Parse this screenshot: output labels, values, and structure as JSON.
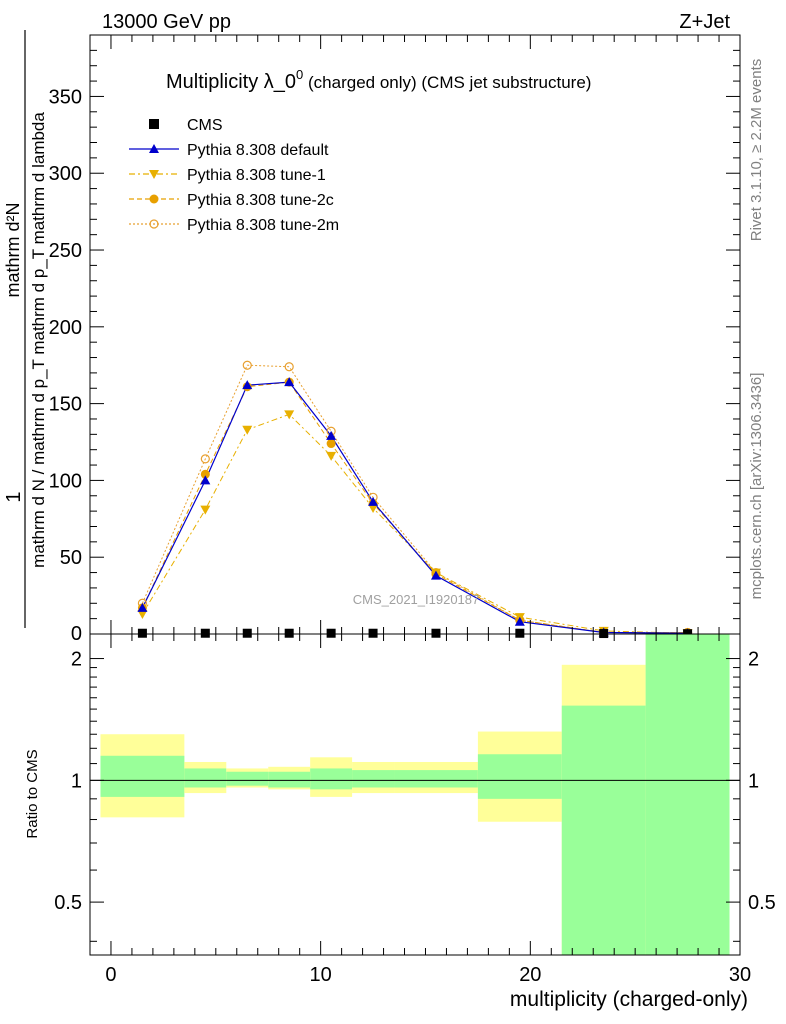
{
  "header": {
    "left": "13000 GeV pp",
    "right": "Z+Jet"
  },
  "side_labels": {
    "rivet": "Rivet 3.1.10, ≥ 2.2M events",
    "mcplots": "mcplots.cern.ch [arXiv:1306.3436]"
  },
  "watermark": "CMS_2021_I1920187",
  "chart_data": [
    {
      "type": "line",
      "panel": "main",
      "title_main": "Multiplicity λ_0",
      "title_sup": "0",
      "title_rest": " (charged only) (CMS jet substructure)",
      "ylabel_top": "mathrm d²N",
      "ylabel_bottom": "mathrm d N / mathrm d p_T mathrm d p_T mathrm d lambda",
      "ylabel_lead": "1",
      "xlim": [
        -1,
        30
      ],
      "ylim": [
        0,
        390
      ],
      "yticks": [
        50,
        100,
        150,
        200,
        250,
        300,
        350
      ],
      "ytick_labels": [
        "50",
        "100",
        "150",
        "200",
        "250",
        "300",
        "350"
      ],
      "ytick_zero": "0",
      "legend_position": "top-left",
      "series": [
        {
          "name": "CMS",
          "color": "#000000",
          "marker": "square",
          "x": [
            1.5,
            4.5,
            6.5,
            8.5,
            10.5,
            12.5,
            15.5,
            19.5,
            23.5,
            27.5
          ],
          "y": [
            0.5,
            0.5,
            0.5,
            0.5,
            0.5,
            0.5,
            0.5,
            0.5,
            0.3,
            0.2
          ]
        },
        {
          "name": "Pythia 8.308 default",
          "color": "#0000cc",
          "marker": "triangle-up",
          "dash": "",
          "x": [
            1.5,
            4.5,
            6.5,
            8.5,
            10.5,
            12.5,
            15.5,
            19.5,
            23.5,
            27.5
          ],
          "y": [
            17,
            100,
            162,
            164,
            129,
            86,
            38,
            8,
            1,
            0.5
          ]
        },
        {
          "name": "Pythia 8.308 tune-1",
          "color": "#e8b000",
          "marker": "triangle-down",
          "dash": "6,3,2,3",
          "x": [
            1.5,
            4.5,
            6.5,
            8.5,
            10.5,
            12.5,
            15.5,
            19.5,
            23.5,
            27.5
          ],
          "y": [
            13,
            81,
            133,
            143,
            116,
            82,
            40,
            11,
            2,
            0.5
          ]
        },
        {
          "name": "Pythia 8.308 tune-2c",
          "color": "#e8a000",
          "marker": "circle",
          "dash": "5,3",
          "x": [
            1.5,
            4.5,
            6.5,
            8.5,
            10.5,
            12.5,
            15.5,
            19.5,
            23.5,
            27.5
          ],
          "y": [
            17,
            104,
            161,
            164,
            124,
            85,
            39,
            9,
            1,
            1
          ]
        },
        {
          "name": "Pythia 8.308 tune-2m",
          "color": "#e8a030",
          "marker": "circle-open",
          "dash": "2,2",
          "x": [
            1.5,
            4.5,
            6.5,
            8.5,
            10.5,
            12.5,
            15.5,
            19.5,
            23.5,
            27.5
          ],
          "y": [
            20,
            114,
            175,
            174,
            132,
            89,
            40,
            9,
            1,
            1
          ]
        }
      ]
    },
    {
      "type": "area",
      "panel": "ratio",
      "ylabel": "Ratio to CMS",
      "xlabel": "multiplicity (charged-only)",
      "xlim": [
        -1,
        30
      ],
      "ylim": [
        0.37,
        2.3
      ],
      "log_y": true,
      "xticks": [
        0,
        10,
        20,
        30
      ],
      "xtick_labels": [
        "0",
        "10",
        "20",
        "30"
      ],
      "yticks": [
        0.5,
        1,
        2
      ],
      "ytick_labels": [
        "0.5",
        "1",
        "2"
      ],
      "reference_line": 1,
      "bins": [
        {
          "x0": -0.5,
          "x1": 3.5,
          "stat_lo": 0.91,
          "stat_hi": 1.15,
          "tot_lo": 0.81,
          "tot_hi": 1.3
        },
        {
          "x0": 3.5,
          "x1": 5.5,
          "stat_lo": 0.96,
          "stat_hi": 1.07,
          "tot_lo": 0.93,
          "tot_hi": 1.11
        },
        {
          "x0": 5.5,
          "x1": 7.5,
          "stat_lo": 0.97,
          "stat_hi": 1.05,
          "tot_lo": 0.96,
          "tot_hi": 1.07
        },
        {
          "x0": 7.5,
          "x1": 9.5,
          "stat_lo": 0.96,
          "stat_hi": 1.05,
          "tot_lo": 0.95,
          "tot_hi": 1.08
        },
        {
          "x0": 9.5,
          "x1": 11.5,
          "stat_lo": 0.95,
          "stat_hi": 1.07,
          "tot_lo": 0.91,
          "tot_hi": 1.14
        },
        {
          "x0": 11.5,
          "x1": 13.5,
          "stat_lo": 0.96,
          "stat_hi": 1.06,
          "tot_lo": 0.93,
          "tot_hi": 1.11
        },
        {
          "x0": 13.5,
          "x1": 17.5,
          "stat_lo": 0.96,
          "stat_hi": 1.06,
          "tot_lo": 0.93,
          "tot_hi": 1.11
        },
        {
          "x0": 17.5,
          "x1": 21.5,
          "stat_lo": 0.9,
          "stat_hi": 1.16,
          "tot_lo": 0.79,
          "tot_hi": 1.32
        },
        {
          "x0": 21.5,
          "x1": 25.5,
          "stat_lo": 0.37,
          "stat_hi": 1.53,
          "tot_lo": 0.37,
          "tot_hi": 1.93
        },
        {
          "x0": 25.5,
          "x1": 29.5,
          "stat_lo": 0.37,
          "stat_hi": 2.3,
          "tot_lo": 0.37,
          "tot_hi": 2.3
        }
      ],
      "colors": {
        "stat": "#99ff99",
        "total": "#ffff99"
      }
    }
  ]
}
